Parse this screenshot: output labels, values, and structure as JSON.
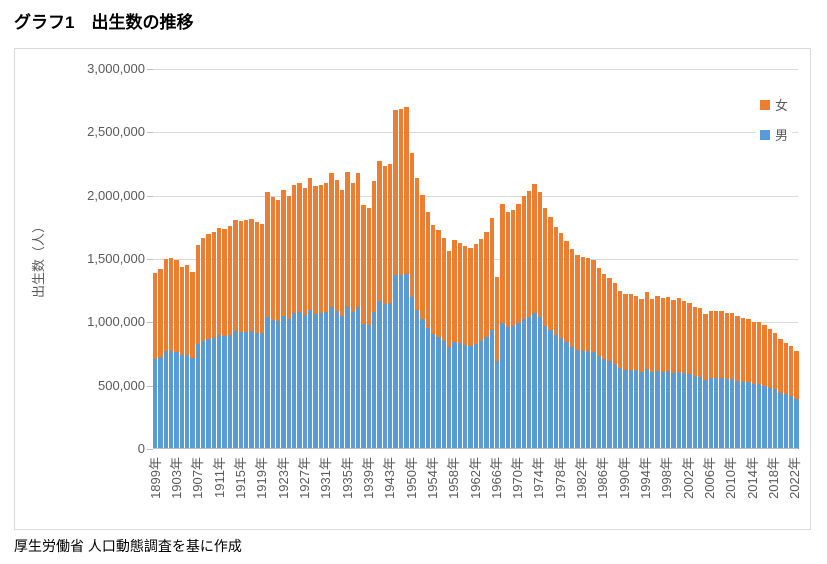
{
  "page": {
    "title": "グラフ1　出生数の推移",
    "source_note": "厚生労働省 人口動態調査を基に作成"
  },
  "chart_data": {
    "type": "bar",
    "stacked": true,
    "title": "",
    "xlabel": "",
    "ylabel": "出生数（人）",
    "ylim": [
      0,
      3000000
    ],
    "y_tick_interval": 500000,
    "y_tick_labels": [
      "3,000,000",
      "2,500,000",
      "2,000,000",
      "1,500,000",
      "1,000,000",
      "500,000",
      "0"
    ],
    "grid": true,
    "legend_position": "top-right",
    "legend": [
      {
        "label": "女",
        "color": "#ED7D31"
      },
      {
        "label": "男",
        "color": "#5B9BD5"
      }
    ],
    "year_ranges": [
      [
        1899,
        1943
      ],
      [
        1947,
        2022
      ]
    ],
    "x_tick_every": 4,
    "x_tick_labels": [
      "1899年",
      "1903年",
      "1907年",
      "1911年",
      "1915年",
      "1919年",
      "1923年",
      "1927年",
      "1931年",
      "1935年",
      "1939年",
      "1943年",
      "1950年",
      "1954年",
      "1958年",
      "1962年",
      "1966年",
      "1970年",
      "1974年",
      "1978年",
      "1982年",
      "1986年",
      "1990年",
      "1994年",
      "1998年",
      "2002年",
      "2006年",
      "2010年",
      "2014年",
      "2018年",
      "2022年"
    ],
    "unit_multiplier": 1000,
    "unit_note": "series values are thousands of persons",
    "series": [
      {
        "name": "男",
        "color": "#5B9BD5",
        "values": [
          712,
          729,
          770,
          775,
          764,
          739,
          745,
          715,
          828,
          853,
          869,
          879,
          897,
          892,
          901,
          928,
          923,
          926,
          930,
          919,
          913,
          1039,
          1021,
          1010,
          1048,
          1025,
          1070,
          1079,
          1057,
          1096,
          1066,
          1070,
          1079,
          1120,
          1088,
          1049,
          1124,
          1078,
          1119,
          989,
          976,
          1085,
          1168,
          1146,
          1156,
          1374,
          1376,
          1384,
          1199,
          1097,
          1029,
          958,
          908,
          888,
          854,
          804,
          848,
          834,
          824,
          815,
          830,
          852,
          881,
          936,
          698,
          993,
          960,
          970,
          992,
          1027,
          1046,
          1073,
          1041,
          975,
          940,
          900,
          877,
          843,
          809,
          784,
          777,
          774,
          764,
          735,
          709,
          691,
          674,
          640,
          627,
          627,
          620,
          609,
          635,
          609,
          619,
          611,
          617,
          604,
          611,
          601,
          592,
          577,
          570,
          545,
          561,
          559,
          560,
          549,
          549,
          539,
          532,
          528,
          515,
          516,
          501,
          485,
          471,
          444,
          431,
          417,
          396
        ]
      },
      {
        "name": "女",
        "color": "#ED7D31",
        "values": [
          675,
          692,
          732,
          736,
          726,
          701,
          708,
          679,
          786,
          810,
          825,
          834,
          851,
          846,
          856,
          880,
          876,
          879,
          882,
          873,
          866,
          987,
          970,
          959,
          995,
          974,
          1016,
          1025,
          1004,
          1040,
          1011,
          1015,
          1024,
          1063,
          1033,
          995,
          1067,
          1024,
          1062,
          939,
          926,
          1031,
          1109,
          1088,
          1098,
          1305,
          1306,
          1313,
          1139,
          1041,
          976,
          910,
          862,
          843,
          811,
          763,
          805,
          792,
          782,
          774,
          789,
          808,
          836,
          888,
          663,
          943,
          912,
          920,
          942,
          974,
          993,
          1019,
          989,
          926,
          893,
          855,
          832,
          800,
          768,
          745,
          738,
          735,
          726,
          697,
          674,
          656,
          640,
          607,
          595,
          596,
          589,
          579,
          603,
          578,
          588,
          581,
          586,
          574,
          580,
          570,
          562,
          547,
          541,
          518,
          532,
          531,
          531,
          521,
          522,
          512,
          505,
          502,
          489,
          490,
          476,
          461,
          447,
          421,
          410,
          395,
          375
        ]
      }
    ]
  }
}
